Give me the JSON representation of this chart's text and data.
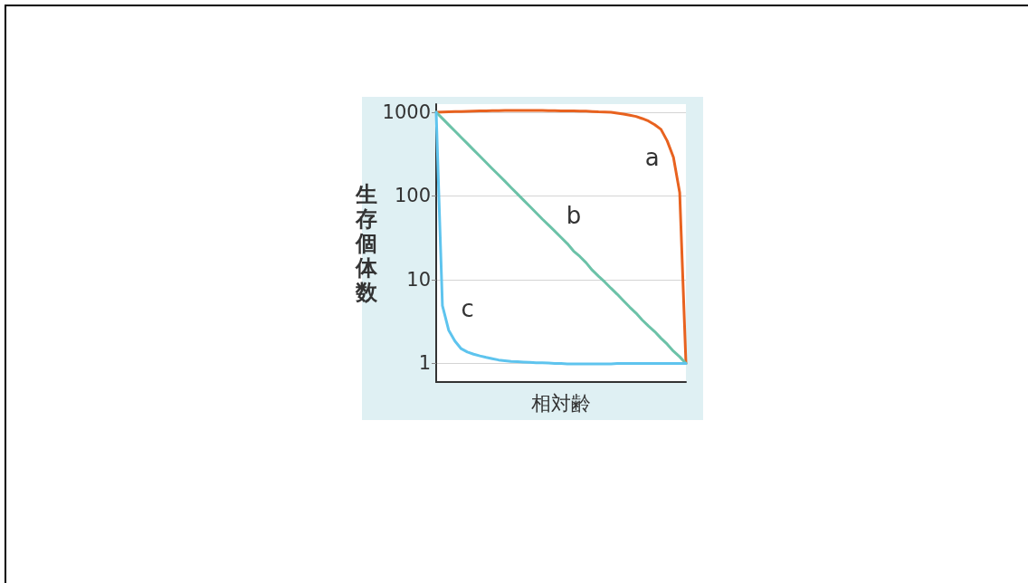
{
  "chart_data": {
    "type": "line",
    "xlabel": "相対齢",
    "ylabel": "生存個体数",
    "categories": [
      null,
      null,
      null,
      null,
      null,
      null,
      null,
      null,
      null,
      null,
      null,
      null,
      null,
      null,
      null,
      null,
      null,
      null,
      null,
      null,
      null,
      null,
      null,
      null,
      null,
      null,
      null,
      null,
      null,
      null,
      null,
      null,
      null,
      null,
      null,
      null,
      null,
      null,
      null,
      null,
      null
    ],
    "series": [
      {
        "name": "a",
        "color": "#e8621f",
        "values": [
          1000,
          1005,
          1010,
          1015,
          1020,
          1025,
          1030,
          1035,
          1040,
          1042,
          1045,
          1048,
          1050,
          1050,
          1050,
          1050,
          1050,
          1048,
          1045,
          1042,
          1040,
          1038,
          1035,
          1032,
          1030,
          1020,
          1010,
          1005,
          1000,
          975,
          950,
          920,
          890,
          840,
          785,
          710,
          625,
          455,
          290,
          110,
          1
        ]
      },
      {
        "name": "b",
        "color": "#6cc2a8",
        "values": [
          1000,
          841,
          708,
          596,
          501,
          422,
          355,
          299,
          251,
          211,
          178,
          150,
          126,
          106,
          89,
          75,
          63,
          53,
          45,
          38,
          32,
          27,
          22,
          19,
          16,
          13,
          11,
          9.4,
          7.9,
          6.7,
          5.6,
          4.7,
          4,
          3.3,
          2.8,
          2.4,
          2,
          1.7,
          1.4,
          1.2,
          1
        ]
      },
      {
        "name": "c",
        "color": "#5ec4ee",
        "values": [
          1000,
          4.9,
          2.5,
          1.85,
          1.5,
          1.37,
          1.29,
          1.23,
          1.18,
          1.14,
          1.1,
          1.08,
          1.06,
          1.05,
          1.04,
          1.03,
          1.02,
          1.02,
          1.01,
          1,
          1,
          0.99,
          0.99,
          0.99,
          0.99,
          0.99,
          0.99,
          0.99,
          0.99,
          1,
          1,
          1,
          1,
          1,
          1,
          1,
          1,
          1,
          1,
          1,
          1
        ]
      }
    ],
    "ylim": [
      0.6,
      1250
    ],
    "yticks": [
      1,
      10,
      100,
      1000
    ],
    "log": true,
    "grid": "y",
    "tick_labels": "y",
    "line_style": "solid"
  }
}
